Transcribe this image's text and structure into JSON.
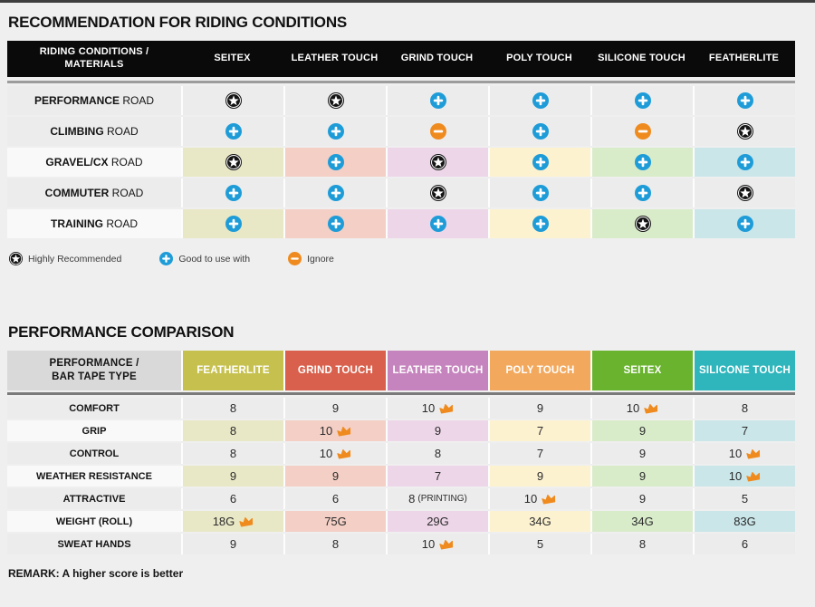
{
  "page": {
    "title1": "RECOMMENDATION FOR RIDING CONDITIONS",
    "title2": "PERFORMANCE COMPARISON",
    "remark": "REMARK: A higher score is better"
  },
  "colors": {
    "star": "#141414",
    "plus": "#1e9cd8",
    "minus": "#ef8b1e",
    "crown": "#ef8b1e",
    "row_gray": "#ececec",
    "row_light": "#f9f9f9",
    "header_black": "#0a0a0a",
    "corner_gray": "#d9d9d9",
    "tints": [
      "#e9e8c6",
      "#f4cfc5",
      "#eed6e9",
      "#fdf2d0",
      "#d9ecca",
      "#cae6e9"
    ],
    "header2": [
      "#c6c14f",
      "#d8604c",
      "#c584bd",
      "#f2a95e",
      "#69b32e",
      "#2fb5bc"
    ]
  },
  "legend": [
    {
      "icon": "star",
      "label": "Highly Recommended"
    },
    {
      "icon": "plus",
      "label": "Good to use with"
    },
    {
      "icon": "minus",
      "label": "Ignore"
    }
  ],
  "table1": {
    "corner_line1": "RIDING CONDITIONS /",
    "corner_line2": "MATERIALS",
    "columns": [
      "SEITEX",
      "LEATHER TOUCH",
      "GRIND TOUCH",
      "POLY TOUCH",
      "SILICONE TOUCH",
      "FEATHERLITE"
    ],
    "rows": [
      {
        "label_bold": "PERFORMANCE",
        "label_rest": "ROAD",
        "tinted": false,
        "cells": [
          "star",
          "star",
          "plus",
          "plus",
          "plus",
          "plus"
        ]
      },
      {
        "label_bold": "CLIMBING",
        "label_rest": "ROAD",
        "tinted": false,
        "cells": [
          "plus",
          "plus",
          "minus",
          "plus",
          "minus",
          "star"
        ]
      },
      {
        "label_bold": "GRAVEL/CX",
        "label_rest": "ROAD",
        "tinted": true,
        "cells": [
          "star",
          "plus",
          "star",
          "plus",
          "plus",
          "plus"
        ]
      },
      {
        "label_bold": "COMMUTER",
        "label_rest": "ROAD",
        "tinted": false,
        "cells": [
          "plus",
          "plus",
          "star",
          "plus",
          "plus",
          "star"
        ]
      },
      {
        "label_bold": "TRAINING",
        "label_rest": "ROAD",
        "tinted": true,
        "cells": [
          "plus",
          "plus",
          "plus",
          "plus",
          "star",
          "plus"
        ]
      }
    ]
  },
  "table2": {
    "corner_line1": "PERFORMANCE /",
    "corner_line2": "BAR TAPE TYPE",
    "columns": [
      "FEATHERLITE",
      "GRIND TOUCH",
      "LEATHER TOUCH",
      "POLY TOUCH",
      "SEITEX",
      "SILICONE TOUCH"
    ],
    "rows": [
      {
        "label": "COMFORT",
        "tinted": false,
        "cells": [
          {
            "v": "8"
          },
          {
            "v": "9"
          },
          {
            "v": "10",
            "crown": true
          },
          {
            "v": "9"
          },
          {
            "v": "10",
            "crown": true
          },
          {
            "v": "8"
          }
        ]
      },
      {
        "label": "GRIP",
        "tinted": true,
        "cells": [
          {
            "v": "8"
          },
          {
            "v": "10",
            "crown": true
          },
          {
            "v": "9"
          },
          {
            "v": "7"
          },
          {
            "v": "9"
          },
          {
            "v": "7"
          }
        ]
      },
      {
        "label": "CONTROL",
        "tinted": false,
        "cells": [
          {
            "v": "8"
          },
          {
            "v": "10",
            "crown": true
          },
          {
            "v": "8"
          },
          {
            "v": "7"
          },
          {
            "v": "9"
          },
          {
            "v": "10",
            "crown": true
          }
        ]
      },
      {
        "label": "WEATHER RESISTANCE",
        "tinted": true,
        "cells": [
          {
            "v": "9"
          },
          {
            "v": "9"
          },
          {
            "v": "7"
          },
          {
            "v": "9"
          },
          {
            "v": "9"
          },
          {
            "v": "10",
            "crown": true
          }
        ]
      },
      {
        "label": "ATTRACTIVE",
        "tinted": false,
        "cells": [
          {
            "v": "6"
          },
          {
            "v": "6"
          },
          {
            "v": "8",
            "suffix": "(PRINTING)"
          },
          {
            "v": "10",
            "crown": true
          },
          {
            "v": "9"
          },
          {
            "v": "5"
          }
        ]
      },
      {
        "label": "WEIGHT (ROLL)",
        "tinted": true,
        "cells": [
          {
            "v": "18G",
            "crown": true
          },
          {
            "v": "75G"
          },
          {
            "v": "29G"
          },
          {
            "v": "34G"
          },
          {
            "v": "34G"
          },
          {
            "v": "83G"
          }
        ]
      },
      {
        "label": "SWEAT HANDS",
        "tinted": false,
        "cells": [
          {
            "v": "9"
          },
          {
            "v": "8"
          },
          {
            "v": "10",
            "crown": true
          },
          {
            "v": "5"
          },
          {
            "v": "8"
          },
          {
            "v": "6"
          }
        ]
      }
    ]
  }
}
